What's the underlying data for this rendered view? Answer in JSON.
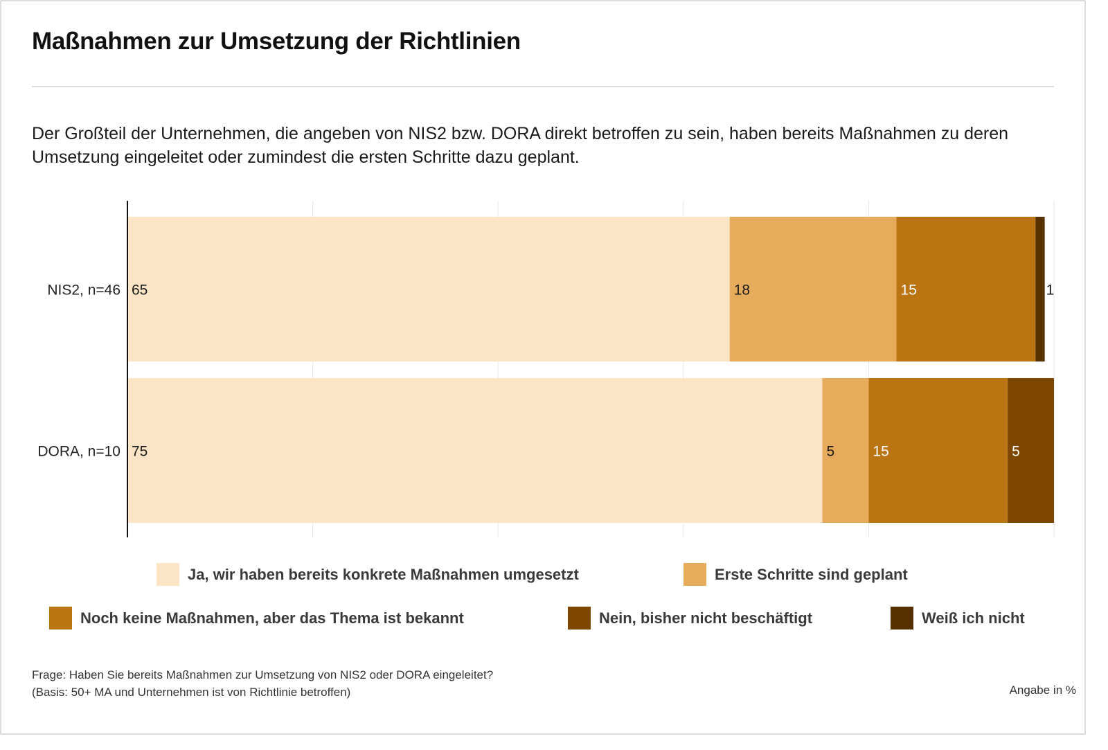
{
  "title": "Maßnahmen zur Umsetzung der Richtlinien",
  "subtitle": "Der Großteil der Unternehmen, die angeben von NIS2 bzw. DORA direkt betroffen zu sein, haben bereits Maßnahmen zu deren Umsetzung eingeleitet oder zumindest die ersten Schritte dazu geplant.",
  "footer": {
    "question": "Frage: Haben Sie bereits Maßnahmen zur Umsetzung von NIS2 oder DORA eingeleitet?",
    "basis": "(Basis: 50+ MA und Unternehmen ist von Richtlinie betroffen)",
    "unit": "Angabe in %"
  },
  "chart_data": {
    "type": "bar",
    "orientation": "horizontal",
    "stacked": true,
    "title": "Maßnahmen zur Umsetzung der Richtlinien",
    "xlabel": "",
    "ylabel": "",
    "xlim": [
      0,
      100
    ],
    "grid": true,
    "grid_ticks": [
      0,
      20,
      40,
      60,
      80,
      100
    ],
    "legend_position": "bottom",
    "categories": [
      "NIS2, n=46",
      "DORA, n=10"
    ],
    "series": [
      {
        "name": "Ja, wir haben bereits konkrete Maßnahmen umgesetzt",
        "color": "#FCE5C6",
        "label_color": "#1a1a1a",
        "values": [
          65,
          75
        ]
      },
      {
        "name": "Erste Schritte sind geplant",
        "color": "#E6AB5B",
        "label_color": "#1a1a1a",
        "values": [
          18,
          5
        ]
      },
      {
        "name": "Noch keine Maßnahmen, aber das Thema ist bekannt",
        "color": "#BB7412",
        "label_color": "#ffffff",
        "values": [
          15,
          15
        ]
      },
      {
        "name": "Nein, bisher nicht beschäftigt",
        "color": "#7E4700",
        "label_color": "#ffffff",
        "values": [
          0,
          5
        ]
      },
      {
        "name": "Weiß ich nicht",
        "color": "#573000",
        "label_color": "#1a1a1a",
        "values": [
          1,
          0
        ]
      }
    ]
  }
}
